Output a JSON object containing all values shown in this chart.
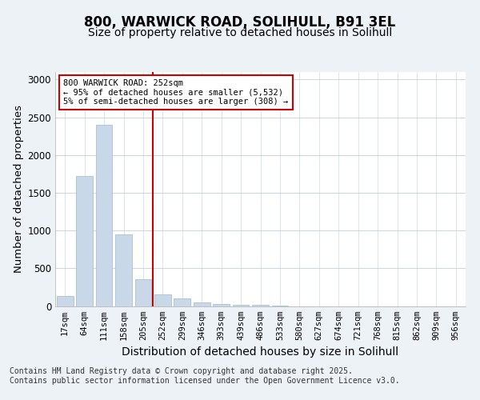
{
  "title1": "800, WARWICK ROAD, SOLIHULL, B91 3EL",
  "title2": "Size of property relative to detached houses in Solihull",
  "xlabel": "Distribution of detached houses by size in Solihull",
  "ylabel": "Number of detached properties",
  "categories": [
    "17sqm",
    "64sqm",
    "111sqm",
    "158sqm",
    "205sqm",
    "252sqm",
    "299sqm",
    "346sqm",
    "393sqm",
    "439sqm",
    "486sqm",
    "533sqm",
    "580sqm",
    "627sqm",
    "674sqm",
    "721sqm",
    "768sqm",
    "815sqm",
    "862sqm",
    "909sqm",
    "956sqm"
  ],
  "values": [
    130,
    1720,
    2400,
    950,
    350,
    155,
    100,
    50,
    25,
    20,
    15,
    5,
    0,
    0,
    0,
    0,
    0,
    0,
    0,
    0,
    0
  ],
  "bar_color": "#c8d8e8",
  "bar_edgecolor": "#a0b8cc",
  "vline_x": 4.5,
  "vline_color": "#cc0000",
  "annotation_text": "800 WARWICK ROAD: 252sqm\n← 95% of detached houses are smaller (5,532)\n5% of semi-detached houses are larger (308) →",
  "annotation_box_color": "#ffffff",
  "annotation_box_edgecolor": "#cc0000",
  "ylim": [
    0,
    3100
  ],
  "yticks": [
    0,
    500,
    1000,
    1500,
    2000,
    2500,
    3000
  ],
  "footnote1": "Contains HM Land Registry data © Crown copyright and database right 2025.",
  "footnote2": "Contains public sector information licensed under the Open Government Licence v3.0.",
  "background_color": "#edf2f7",
  "plot_background": "#ffffff",
  "grid_color": "#c5d0dc",
  "title_fontsize": 12,
  "subtitle_fontsize": 10,
  "axis_label_fontsize": 9.5,
  "tick_fontsize": 7.5,
  "footnote_fontsize": 7,
  "ann_fontsize": 7.5
}
